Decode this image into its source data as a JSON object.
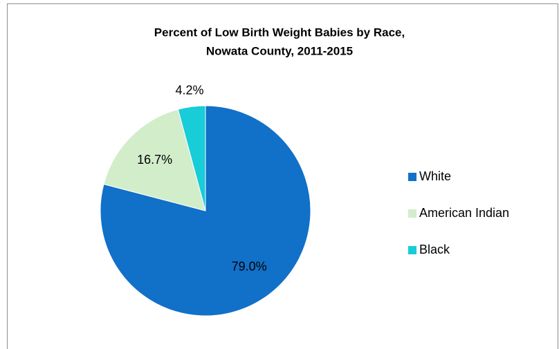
{
  "chart_data": {
    "type": "pie",
    "title": [
      "Percent of Low Birth Weight Babies by Race,",
      "Nowata County, 2011-2015"
    ],
    "categories": [
      "White",
      "American Indian",
      "Black"
    ],
    "values": [
      79.0,
      16.7,
      4.2
    ],
    "value_labels": [
      "79.0%",
      "16.7%",
      "4.2%"
    ],
    "colors": [
      "#1170c8",
      "#d2edca",
      "#18ccd8"
    ],
    "legend": "right"
  }
}
